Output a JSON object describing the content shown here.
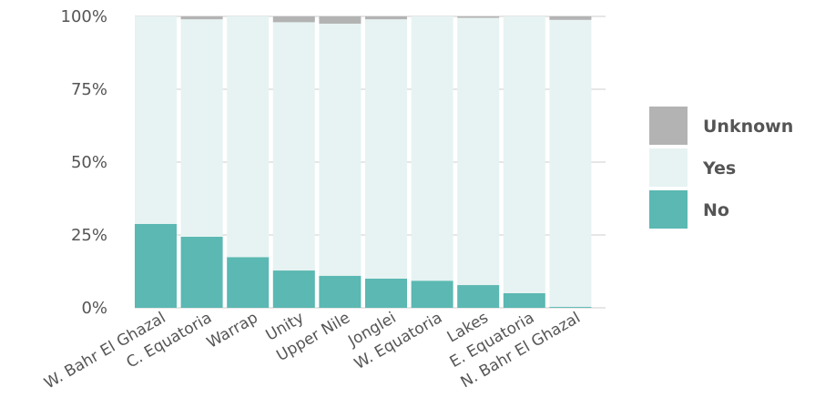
{
  "colors": {
    "No": "#5bb8b2",
    "Yes": "#e6f3f2",
    "Unknown": "#b3b3b3",
    "grid": "#cccccc",
    "text": "#555555"
  },
  "chart_data": {
    "type": "bar",
    "stacked": true,
    "normalized": true,
    "title": "",
    "xlabel": "",
    "ylabel": "",
    "ylim": [
      0,
      100
    ],
    "yticks": [
      "0%",
      "25%",
      "50%",
      "75%",
      "100%"
    ],
    "grid": true,
    "legend_position": "right",
    "categories": [
      "W. Bahr El Ghazal",
      "C. Equatoria",
      "Warrap",
      "Unity",
      "Upper Nile",
      "Jonglei",
      "W. Equatoria",
      "Lakes",
      "E. Equatoria",
      "N. Bahr El Ghazal"
    ],
    "series": [
      {
        "name": "No",
        "values": [
          28.8,
          24.4,
          17.4,
          12.8,
          11.0,
          10.0,
          9.3,
          7.8,
          5.0,
          0.3
        ]
      },
      {
        "name": "Yes",
        "values": [
          71.2,
          74.6,
          82.6,
          85.2,
          86.5,
          89.0,
          90.7,
          91.7,
          95.0,
          98.5
        ]
      },
      {
        "name": "Unknown",
        "values": [
          0.0,
          1.0,
          0.0,
          2.0,
          2.5,
          1.0,
          0.0,
          0.5,
          0.0,
          1.2
        ]
      }
    ],
    "legend": [
      "Unknown",
      "Yes",
      "No"
    ]
  }
}
